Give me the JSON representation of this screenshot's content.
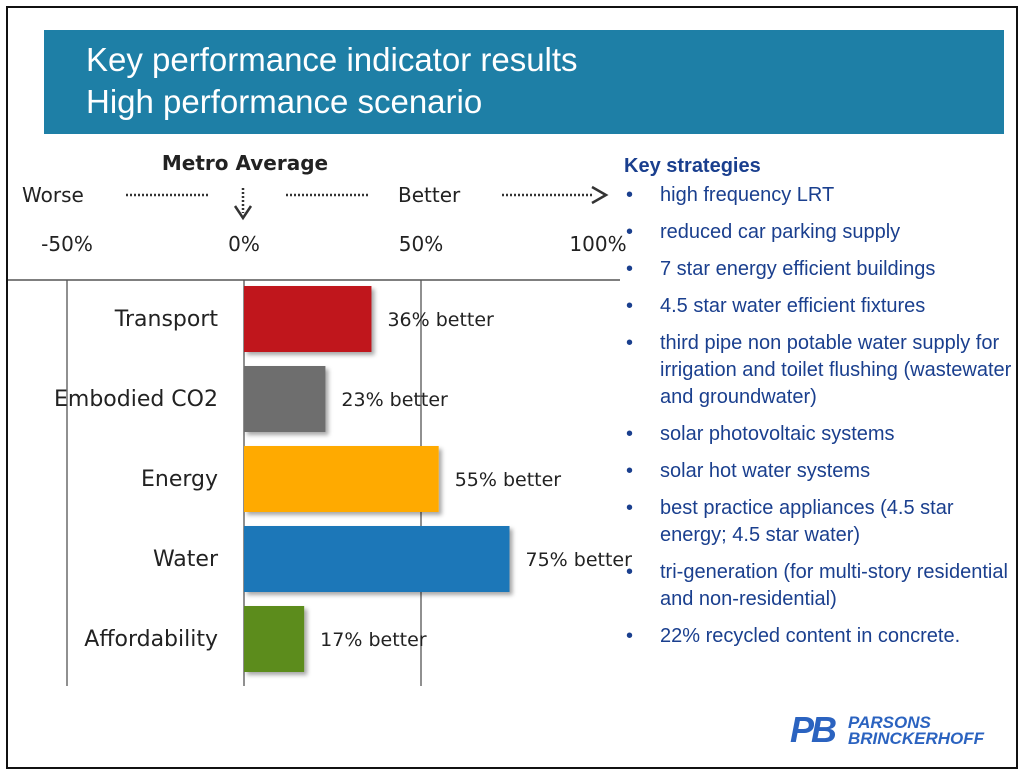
{
  "title": {
    "line1": "Key performance indicator results",
    "line2": "High performance scenario"
  },
  "chart_data": {
    "type": "bar",
    "orientation": "horizontal",
    "reference_label": "Metro Average",
    "direction_labels": {
      "worse": "Worse",
      "better": "Better"
    },
    "tick_labels": [
      "-50%",
      "0%",
      "50%",
      "100%"
    ],
    "xlim": [
      -50,
      100
    ],
    "categories": [
      "Transport",
      "Embodied CO2",
      "Energy",
      "Water",
      "Affordability"
    ],
    "values": [
      36,
      23,
      55,
      75,
      17
    ],
    "value_labels": [
      "36% better",
      "23% better",
      "55% better",
      "75% better",
      "17% better"
    ],
    "colors": [
      "#c0141a",
      "#6e6e6e",
      "#ffaa00",
      "#1e77b8",
      "#5c8c1a"
    ]
  },
  "strategies": {
    "heading": "Key strategies",
    "items": [
      "high frequency LRT",
      "reduced car parking supply",
      "7 star energy efficient buildings",
      "4.5 star water efficient fixtures",
      "third pipe non potable water supply for irrigation and toilet flushing (wastewater and groundwater)",
      "solar photovoltaic systems",
      "solar hot water systems",
      "best practice appliances (4.5 star energy; 4.5 star water)",
      "tri-generation (for multi-story residential and non-residential)",
      "22% recycled content in concrete."
    ]
  },
  "logo": {
    "mark": "PB",
    "name_line1": "PARSONS",
    "name_line2": "BRINCKERHOFF"
  }
}
